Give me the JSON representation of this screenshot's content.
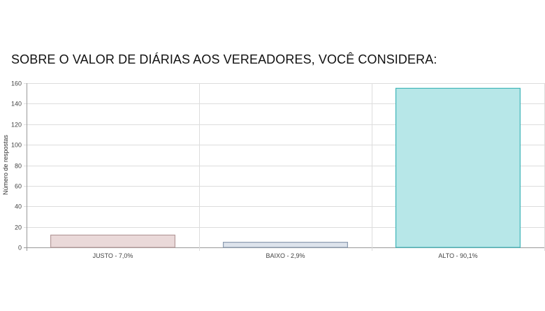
{
  "chart_data": {
    "type": "bar",
    "title": "SOBRE O VALOR DE DIÁRIAS AOS VEREADORES, VOCÊ CONSIDERA:",
    "xlabel": "",
    "ylabel": "Número de respostas",
    "categories": [
      "JUSTO - 7,0%",
      "BAIXO - 2,9%",
      "ALTO - 90,1%"
    ],
    "values": [
      12,
      5,
      155
    ],
    "ylim": [
      0,
      160
    ],
    "yticks": [
      0,
      20,
      40,
      60,
      80,
      100,
      120,
      140,
      160
    ],
    "grid": true,
    "bar_colors": [
      {
        "fill": "#ead9d9",
        "stroke": "#b59a9a"
      },
      {
        "fill": "#dde3ec",
        "stroke": "#8b9bb0"
      },
      {
        "fill": "#b7e7e8",
        "stroke": "#3fb5b8"
      }
    ]
  }
}
